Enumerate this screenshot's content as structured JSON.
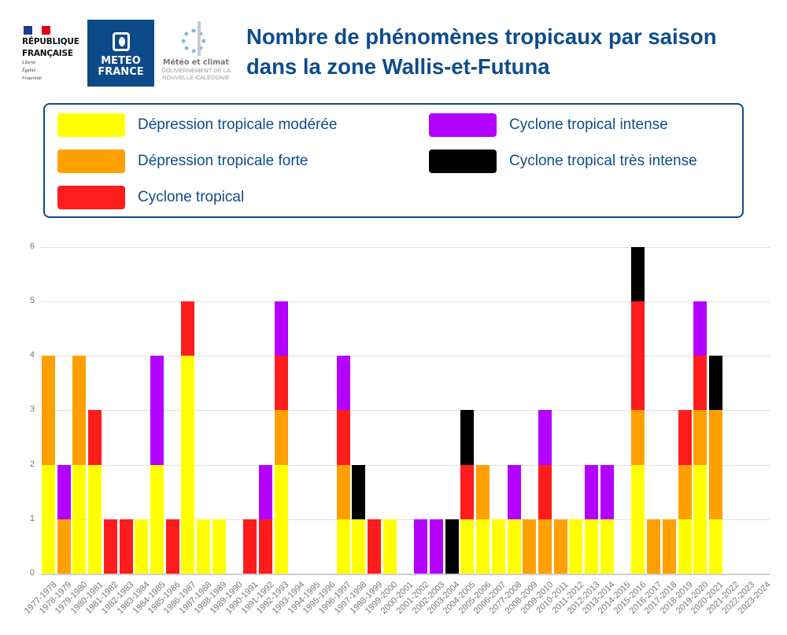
{
  "header": {
    "title": "Nombre de phénomènes tropicaux par saison dans la zone Wallis-et-Futuna",
    "logos": {
      "republique": {
        "line1": "RÉPUBLIQUE",
        "line2": "FRANÇAISE",
        "motto": [
          "Liberté",
          "Égalité",
          "Fraternité"
        ]
      },
      "meteofrance": {
        "line1": "METEO",
        "line2": "FRANCE"
      },
      "nouvelle_caledonie": {
        "line1": "Météo et climat",
        "line2": "GOUVERNEMENT DE LA",
        "line3": "NOUVELLE-CALÉDONIE"
      }
    }
  },
  "colors": {
    "title": "#0e4c8c",
    "dt_moderee": "#ffff00",
    "dt_forte": "#ffa000",
    "cyclone": "#ff1c1c",
    "cyclone_intense": "#b300ff",
    "cyclone_tres_intense": "#000000"
  },
  "legend": [
    {
      "key": "dt_moderee",
      "label": "Dépression tropicale modérée",
      "color": "#ffff00"
    },
    {
      "key": "dt_forte",
      "label": "Dépression tropicale forte",
      "color": "#ffa000"
    },
    {
      "key": "cyclone",
      "label": "Cyclone tropical",
      "color": "#ff1c1c"
    },
    {
      "key": "cyclone_intense",
      "label": "Cyclone tropical intense",
      "color": "#b300ff"
    },
    {
      "key": "cyclone_tres_intense",
      "label": "Cyclone tropical très intense",
      "color": "#000000"
    }
  ],
  "chart_data": {
    "type": "bar",
    "stacked": true,
    "title": "Nombre de phénomènes tropicaux par saison dans la zone Wallis-et-Futuna",
    "xlabel": "",
    "ylabel": "",
    "ylim": [
      0,
      6
    ],
    "yticks": [
      0,
      1,
      2,
      3,
      4,
      5,
      6
    ],
    "grid": true,
    "legend_position": "top",
    "categories": [
      "1977-1978",
      "1978-1979",
      "1979-1980",
      "1980-1981",
      "1981-1982",
      "1982-1983",
      "1983-1984",
      "1984-1985",
      "1985-1986",
      "1986-1987",
      "1987-1988",
      "1988-1989",
      "1989-1990",
      "1990-1991",
      "1991-1992",
      "1992-1993",
      "1993-1994",
      "1994-1995",
      "1995-1996",
      "1996-1997",
      "1997-1998",
      "1998-1999",
      "1999-2000",
      "2000-2001",
      "2001-2002",
      "2002-2003",
      "2003-2004",
      "2004-2005",
      "2005-2006",
      "2006-2007",
      "2077-2008",
      "2008-2009",
      "2009-2010",
      "2010-2011",
      "2011-2012",
      "2012-2013",
      "2013-2014",
      "2014-2015",
      "2015-2016",
      "2016-2017",
      "2017-2018",
      "2018-2019",
      "2019-2020",
      "2020-2021",
      "2021-2022",
      "2022-2023",
      "2023-2024"
    ],
    "series": [
      {
        "name": "Dépression tropicale modérée",
        "color": "#ffff00",
        "values": [
          2,
          0,
          2,
          2,
          0,
          0,
          1,
          2,
          0,
          4,
          1,
          1,
          0,
          0,
          0,
          2,
          0,
          0,
          0,
          1,
          1,
          0,
          1,
          0,
          0,
          0,
          0,
          1,
          1,
          1,
          1,
          0,
          0,
          0,
          1,
          1,
          1,
          0,
          2,
          0,
          0,
          1,
          2,
          1,
          0,
          0,
          0
        ]
      },
      {
        "name": "Dépression tropicale forte",
        "color": "#ffa000",
        "values": [
          2,
          1,
          2,
          0,
          0,
          0,
          0,
          0,
          0,
          0,
          0,
          0,
          0,
          0,
          0,
          1,
          0,
          0,
          0,
          1,
          0,
          0,
          0,
          0,
          0,
          0,
          0,
          0,
          1,
          0,
          0,
          1,
          1,
          1,
          0,
          0,
          0,
          0,
          1,
          1,
          1,
          1,
          1,
          2,
          0,
          0,
          0
        ]
      },
      {
        "name": "Cyclone tropical",
        "color": "#ff1c1c",
        "values": [
          0,
          0,
          0,
          1,
          1,
          1,
          0,
          0,
          1,
          1,
          0,
          0,
          0,
          1,
          1,
          1,
          0,
          0,
          0,
          1,
          0,
          1,
          0,
          0,
          0,
          0,
          0,
          1,
          0,
          0,
          0,
          0,
          1,
          0,
          0,
          0,
          0,
          0,
          2,
          0,
          0,
          1,
          1,
          0,
          0,
          0,
          0
        ]
      },
      {
        "name": "Cyclone tropical intense",
        "color": "#b300ff",
        "values": [
          0,
          1,
          0,
          0,
          0,
          0,
          0,
          2,
          0,
          0,
          0,
          0,
          0,
          0,
          1,
          1,
          0,
          0,
          0,
          1,
          0,
          0,
          0,
          0,
          1,
          1,
          0,
          0,
          0,
          0,
          1,
          0,
          1,
          0,
          0,
          1,
          1,
          0,
          0,
          0,
          0,
          0,
          1,
          0,
          0,
          0,
          0
        ]
      },
      {
        "name": "Cyclone tropical très intense",
        "color": "#000000",
        "values": [
          0,
          0,
          0,
          0,
          0,
          0,
          0,
          0,
          0,
          0,
          0,
          0,
          0,
          0,
          0,
          0,
          0,
          0,
          0,
          0,
          1,
          0,
          0,
          0,
          0,
          0,
          1,
          1,
          0,
          0,
          0,
          0,
          0,
          0,
          0,
          0,
          0,
          0,
          1,
          0,
          0,
          0,
          0,
          1,
          0,
          0,
          0
        ]
      }
    ]
  }
}
